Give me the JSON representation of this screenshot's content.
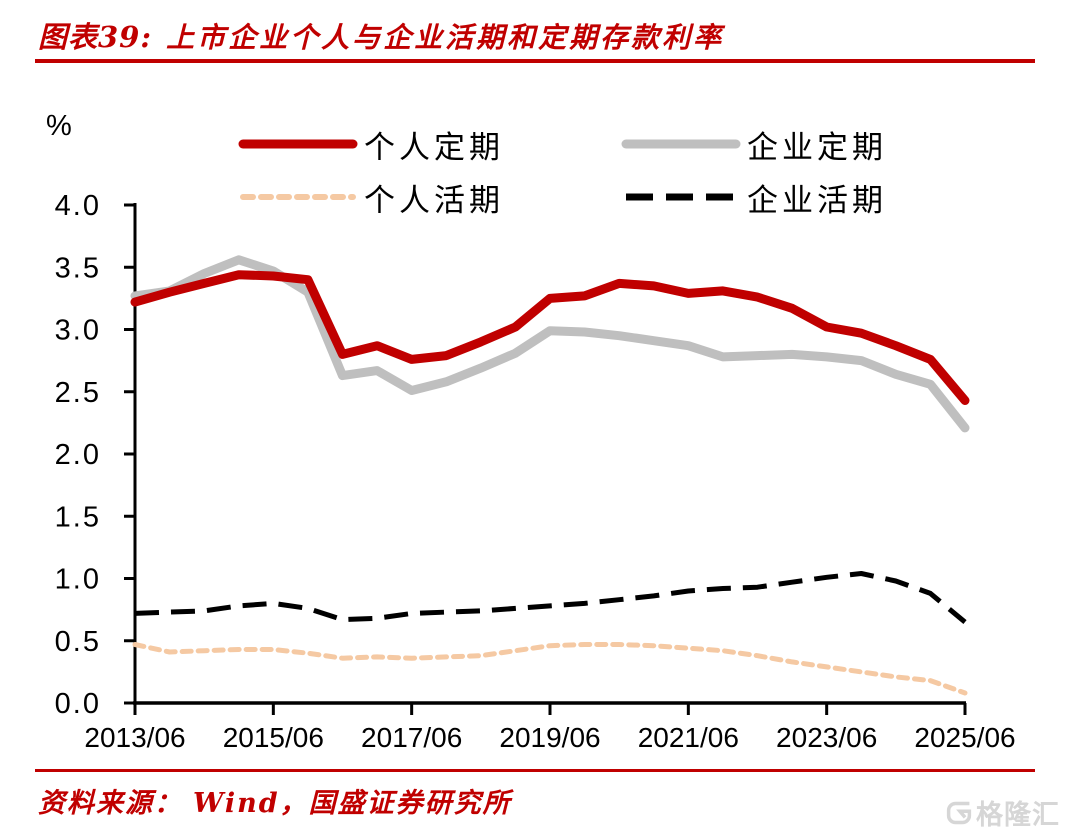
{
  "header": {
    "label": "图表39:",
    "title": "上市企业个人与企业活期和定期存款利率"
  },
  "chart_data": {
    "type": "line",
    "unit_label": "%",
    "grid": false,
    "legend_position": "top",
    "ylim": [
      0,
      4
    ],
    "y_ticks": [
      "4.0",
      "3.5",
      "3.0",
      "2.5",
      "2.0",
      "1.5",
      "1.0",
      "0.5",
      "0.0"
    ],
    "x_tick_labels": [
      "2013/06",
      "2015/06",
      "2017/06",
      "2019/06",
      "2021/06",
      "2023/06",
      "2025/06"
    ],
    "x_tick_indices": [
      0,
      4,
      8,
      12,
      16,
      20,
      24
    ],
    "x": [
      "2013/06",
      "2013/12",
      "2014/06",
      "2014/12",
      "2015/06",
      "2015/12",
      "2016/06",
      "2016/12",
      "2017/06",
      "2017/12",
      "2018/06",
      "2018/12",
      "2019/06",
      "2019/12",
      "2020/06",
      "2020/12",
      "2021/06",
      "2021/12",
      "2022/06",
      "2022/12",
      "2023/06",
      "2023/12",
      "2024/06",
      "2024/12",
      "2025/06"
    ],
    "series": [
      {
        "name": "个人定期",
        "slug": "personal-time-deposit",
        "color": "#C00000",
        "line_style": "solid",
        "line_width": 9,
        "values": [
          3.22,
          3.3,
          3.37,
          3.44,
          3.43,
          3.4,
          2.8,
          2.87,
          2.76,
          2.79,
          2.9,
          3.02,
          3.25,
          3.27,
          3.37,
          3.35,
          3.29,
          3.31,
          3.26,
          3.17,
          3.02,
          2.97,
          2.87,
          2.76,
          2.43
        ]
      },
      {
        "name": "企业定期",
        "slug": "corporate-time-deposit",
        "color": "#BFBFBF",
        "line_style": "solid",
        "line_width": 9,
        "values": [
          3.27,
          3.31,
          3.45,
          3.56,
          3.47,
          3.3,
          2.63,
          2.67,
          2.51,
          2.58,
          2.69,
          2.81,
          2.99,
          2.98,
          2.95,
          2.91,
          2.87,
          2.78,
          2.79,
          2.8,
          2.78,
          2.75,
          2.64,
          2.56,
          2.21
        ]
      },
      {
        "name": "个人活期",
        "slug": "personal-demand-deposit",
        "color": "#F5C9A3",
        "line_style": "dashed-short",
        "line_width": 5,
        "values": [
          0.47,
          0.41,
          0.42,
          0.43,
          0.43,
          0.4,
          0.36,
          0.37,
          0.36,
          0.37,
          0.38,
          0.42,
          0.46,
          0.47,
          0.47,
          0.46,
          0.44,
          0.42,
          0.38,
          0.33,
          0.29,
          0.25,
          0.21,
          0.18,
          0.08
        ]
      },
      {
        "name": "企业活期",
        "slug": "corporate-demand-deposit",
        "color": "#000000",
        "line_style": "dashed-long",
        "line_width": 5,
        "values": [
          0.72,
          0.73,
          0.74,
          0.78,
          0.8,
          0.76,
          0.67,
          0.68,
          0.72,
          0.73,
          0.74,
          0.76,
          0.78,
          0.8,
          0.83,
          0.86,
          0.9,
          0.92,
          0.93,
          0.97,
          1.01,
          1.04,
          0.98,
          0.88,
          0.65
        ]
      }
    ]
  },
  "footer": {
    "source_label": "资料来源：",
    "source_text": "Wind，国盛证券研究所"
  },
  "watermark": {
    "text": "格隆汇"
  },
  "colors": {
    "accent": "#C00000",
    "axis": "#000000",
    "watermark": "#d6d6d6"
  }
}
